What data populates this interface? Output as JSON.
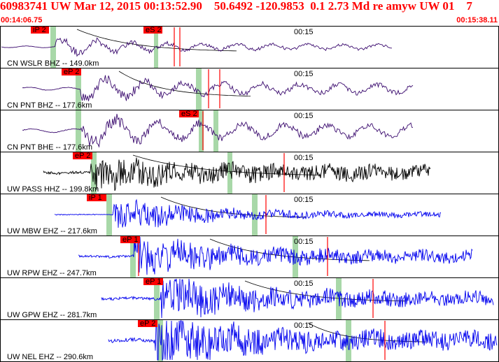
{
  "header": {
    "title": "60983741 UW Mar 12, 2015 00:13:52.90    50.6492 -120.9853  0.1 2.73 Md re amyw UW 01    7",
    "start_time": "00:14:06.75",
    "end_time": "00:15:38.11"
  },
  "tick_label": "00:15",
  "colors": {
    "header_text": "#ff0000",
    "pick_box": "#ff0000",
    "marker": "#a8d8a8",
    "trace_purple": "#3a0a6e",
    "trace_black": "#000000",
    "trace_blue": "#0000ee",
    "curve": "#000000"
  },
  "panels": [
    {
      "station": "CN WSLR BHZ -- 149.0km",
      "color_key": "trace_purple",
      "picks": [
        {
          "label": "iP 2"
        },
        {
          "label": "eS 2"
        }
      ]
    },
    {
      "station": "CN PNT BHZ -- 177.6km",
      "color_key": "trace_purple",
      "picks": [
        {
          "label": "eP 2"
        }
      ]
    },
    {
      "station": "CN PNT BHE -- 177.6km",
      "color_key": "trace_purple",
      "picks": [
        {
          "label": "eS 2"
        }
      ]
    },
    {
      "station": "UW PASS HHZ -- 199.8km",
      "color_key": "trace_black",
      "picks": [
        {
          "label": "eP 2"
        }
      ]
    },
    {
      "station": "UW MBW EHZ -- 217.6km",
      "color_key": "trace_blue",
      "picks": [
        {
          "label": "iP 1"
        }
      ]
    },
    {
      "station": "UW RPW EHZ -- 247.7km",
      "color_key": "trace_blue",
      "picks": [
        {
          "label": "eP 1"
        }
      ]
    },
    {
      "station": "UW GPW EHZ -- 281.7km",
      "color_key": "trace_blue",
      "picks": [
        {
          "label": "eP 1"
        }
      ]
    },
    {
      "station": "UW NEL EHZ -- 290.6km",
      "color_key": "trace_blue",
      "picks": [
        {
          "label": "eP 2"
        }
      ]
    }
  ]
}
